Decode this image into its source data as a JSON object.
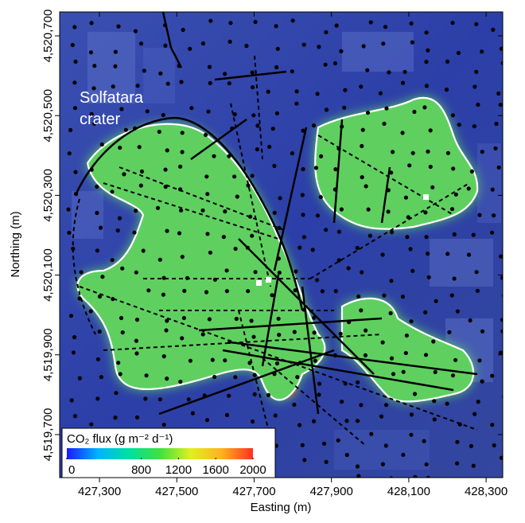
{
  "map": {
    "annotation": [
      "Solfatara",
      "crater"
    ],
    "x_axis": {
      "label": "Easting (m)",
      "xlim": [
        427197,
        428343
      ],
      "ticks": [
        {
          "value": 427300,
          "label": "427,300"
        },
        {
          "value": 427500,
          "label": "427,500"
        },
        {
          "value": 427700,
          "label": "427,700"
        },
        {
          "value": 427900,
          "label": "427,900"
        },
        {
          "value": 428100,
          "label": "428,100"
        },
        {
          "value": 428300,
          "label": "428,300"
        }
      ]
    },
    "y_axis": {
      "label": "Northing (m)",
      "ylim": [
        4519592,
        4520760
      ],
      "ticks": [
        {
          "value": 4520700,
          "label": "4,520,700"
        },
        {
          "value": 4520500,
          "label": "4,520,500"
        },
        {
          "value": 4520300,
          "label": "4,520,300"
        },
        {
          "value": 4520100,
          "label": "4,520,100"
        },
        {
          "value": 4519900,
          "label": "4,519,900"
        },
        {
          "value": 4519700,
          "label": "4,519,700"
        }
      ]
    },
    "colorbar": {
      "title": "CO₂ flux (g m⁻² d⁻¹)",
      "range": [
        0,
        2000
      ],
      "ticks": [
        0,
        800,
        1200,
        1600,
        2000
      ],
      "colors": [
        "#1a1aff",
        "#00b4ff",
        "#00e0a0",
        "#40e040",
        "#e0f020",
        "#ffb020",
        "#ff3020"
      ]
    }
  }
}
